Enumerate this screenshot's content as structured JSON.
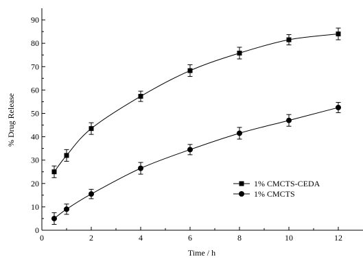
{
  "chart_data": {
    "type": "line",
    "xlabel": "Time / h",
    "ylabel": "% Drug Release",
    "xlim": [
      0,
      13
    ],
    "ylim": [
      0,
      95
    ],
    "x_ticks": [
      0,
      2,
      4,
      6,
      8,
      10,
      12
    ],
    "y_ticks": [
      0,
      10,
      20,
      30,
      40,
      50,
      60,
      70,
      80,
      90
    ],
    "grid": false,
    "legend_position": "middle-right",
    "series": [
      {
        "name": "1% CMCTS-CEDA",
        "marker": "square",
        "color": "#000000",
        "x": [
          0.5,
          1,
          2,
          4,
          6,
          8,
          10,
          12
        ],
        "y": [
          25,
          32,
          43.5,
          57.3,
          68.3,
          75.8,
          81.5,
          84
        ],
        "err": [
          2.5,
          2.5,
          2.5,
          2.2,
          2.5,
          2.5,
          2.2,
          2.5
        ]
      },
      {
        "name": "1% CMCTS",
        "marker": "circle",
        "color": "#000000",
        "x": [
          0.5,
          1,
          2,
          4,
          6,
          8,
          10,
          12
        ],
        "y": [
          5,
          9,
          15.5,
          26.5,
          34.5,
          41.5,
          47,
          52.5
        ],
        "err": [
          2.5,
          2.2,
          2.0,
          2.5,
          2.2,
          2.5,
          2.5,
          2.2
        ]
      }
    ]
  }
}
